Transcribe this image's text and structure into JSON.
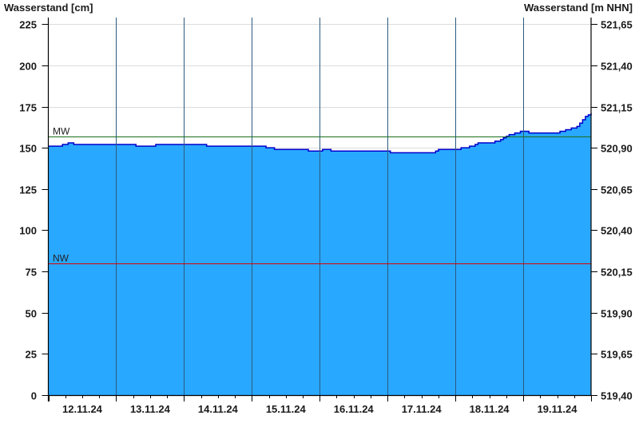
{
  "chart_data": {
    "type": "area",
    "ylabel_left": "Wasserstand [cm]",
    "ylabel_right": "Wasserstand [m NHN]",
    "ylim": [
      0,
      229
    ],
    "x_range": [
      "12.11.24 00:00",
      "20.11.24 00:00"
    ],
    "x_tick_labels": [
      "12.11.24",
      "13.11.24",
      "14.11.24",
      "15.11.24",
      "16.11.24",
      "17.11.24",
      "18.11.24",
      "19.11.24"
    ],
    "y_ticks_left": [
      0,
      25,
      50,
      75,
      100,
      125,
      150,
      175,
      200,
      225
    ],
    "y_tick_labels_left": [
      "0",
      "25",
      "50",
      "75",
      "100",
      "125",
      "150",
      "175",
      "200",
      "225"
    ],
    "y_tick_labels_right": [
      "519,40",
      "519,65",
      "519,90",
      "520,15",
      "520,40",
      "520,65",
      "520,90",
      "521,15",
      "521,40",
      "521,65"
    ],
    "grid": true,
    "colors": {
      "fill": "#29a8ff",
      "line": "#0000cc",
      "mw": "#1a6e1a",
      "nw": "#e00000",
      "grid": "#dcdcdc",
      "day_line": "#2a5a80"
    },
    "reference_lines": [
      {
        "label": "MW",
        "value": 157
      },
      {
        "label": "NW",
        "value": 80
      }
    ],
    "series": [
      {
        "points": [
          [
            "12.11.24 00:00",
            151
          ],
          [
            "12.11.24 05:00",
            152
          ],
          [
            "12.11.24 07:00",
            153
          ],
          [
            "12.11.24 09:00",
            152
          ],
          [
            "13.11.24 07:00",
            151
          ],
          [
            "13.11.24 14:00",
            152
          ],
          [
            "14.11.24 08:00",
            151
          ],
          [
            "15.11.24 05:00",
            150
          ],
          [
            "15.11.24 08:00",
            149
          ],
          [
            "15.11.24 20:00",
            148
          ],
          [
            "16.11.24 01:00",
            149
          ],
          [
            "16.11.24 04:00",
            148
          ],
          [
            "17.11.24 01:00",
            147
          ],
          [
            "17.11.24 17:00",
            148
          ],
          [
            "17.11.24 18:00",
            149
          ],
          [
            "18.11.24 02:00",
            150
          ],
          [
            "18.11.24 05:00",
            151
          ],
          [
            "18.11.24 07:00",
            152
          ],
          [
            "18.11.24 08:00",
            153
          ],
          [
            "18.11.24 14:00",
            154
          ],
          [
            "18.11.24 16:00",
            155
          ],
          [
            "18.11.24 17:00",
            156
          ],
          [
            "18.11.24 18:00",
            157
          ],
          [
            "18.11.24 19:00",
            158
          ],
          [
            "18.11.24 21:00",
            159
          ],
          [
            "18.11.24 23:00",
            160
          ],
          [
            "19.11.24 02:00",
            159
          ],
          [
            "19.11.24 13:00",
            160
          ],
          [
            "19.11.24 15:00",
            161
          ],
          [
            "19.11.24 17:00",
            162
          ],
          [
            "19.11.24 19:00",
            163
          ],
          [
            "19.11.24 20:00",
            165
          ],
          [
            "19.11.24 21:00",
            167
          ],
          [
            "19.11.24 22:00",
            169
          ],
          [
            "19.11.24 23:00",
            170
          ],
          [
            "20.11.24 00:00",
            171
          ]
        ]
      }
    ]
  }
}
